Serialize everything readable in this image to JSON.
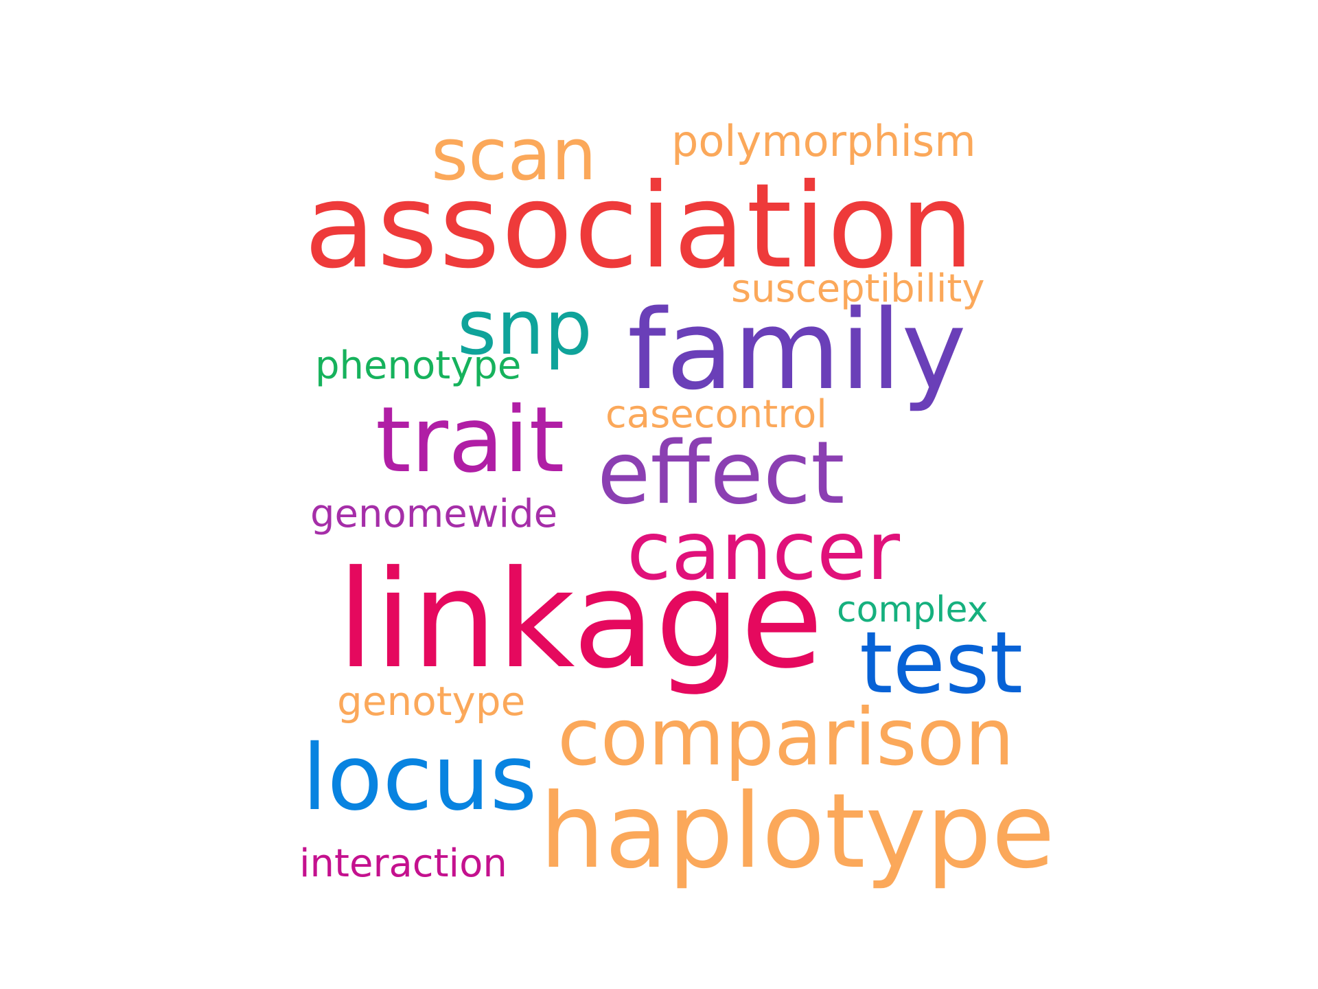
{
  "words": {
    "scan": {
      "text": "scan",
      "color": "#FBA85A"
    },
    "polymorphism": {
      "text": "polymorphism",
      "color": "#FBA85A"
    },
    "association": {
      "text": "association",
      "color": "#EE3A3A"
    },
    "susceptibility": {
      "text": "susceptibility",
      "color": "#FBA85A"
    },
    "snp": {
      "text": "snp",
      "color": "#0FA39A"
    },
    "family": {
      "text": "family",
      "color": "#6A3FB8"
    },
    "phenotype": {
      "text": "phenotype",
      "color": "#16B25C"
    },
    "casecontrol": {
      "text": "casecontrol",
      "color": "#FBA85A"
    },
    "trait": {
      "text": "trait",
      "color": "#B01EA5"
    },
    "effect": {
      "text": "effect",
      "color": "#8B3FB2"
    },
    "genomewide": {
      "text": "genomewide",
      "color": "#A52EA8"
    },
    "cancer": {
      "text": "cancer",
      "color": "#E0117A"
    },
    "linkage": {
      "text": "linkage",
      "color": "#E5095E"
    },
    "complex": {
      "text": "complex",
      "color": "#16B07E"
    },
    "test": {
      "text": "test",
      "color": "#0762D6"
    },
    "genotype": {
      "text": "genotype",
      "color": "#FBA85A"
    },
    "comparison": {
      "text": "comparison",
      "color": "#FBA85A"
    },
    "locus": {
      "text": "locus",
      "color": "#0883E0"
    },
    "haplotype": {
      "text": "haplotype",
      "color": "#FBA85A"
    },
    "interaction": {
      "text": "interaction",
      "color": "#C4118E"
    }
  }
}
